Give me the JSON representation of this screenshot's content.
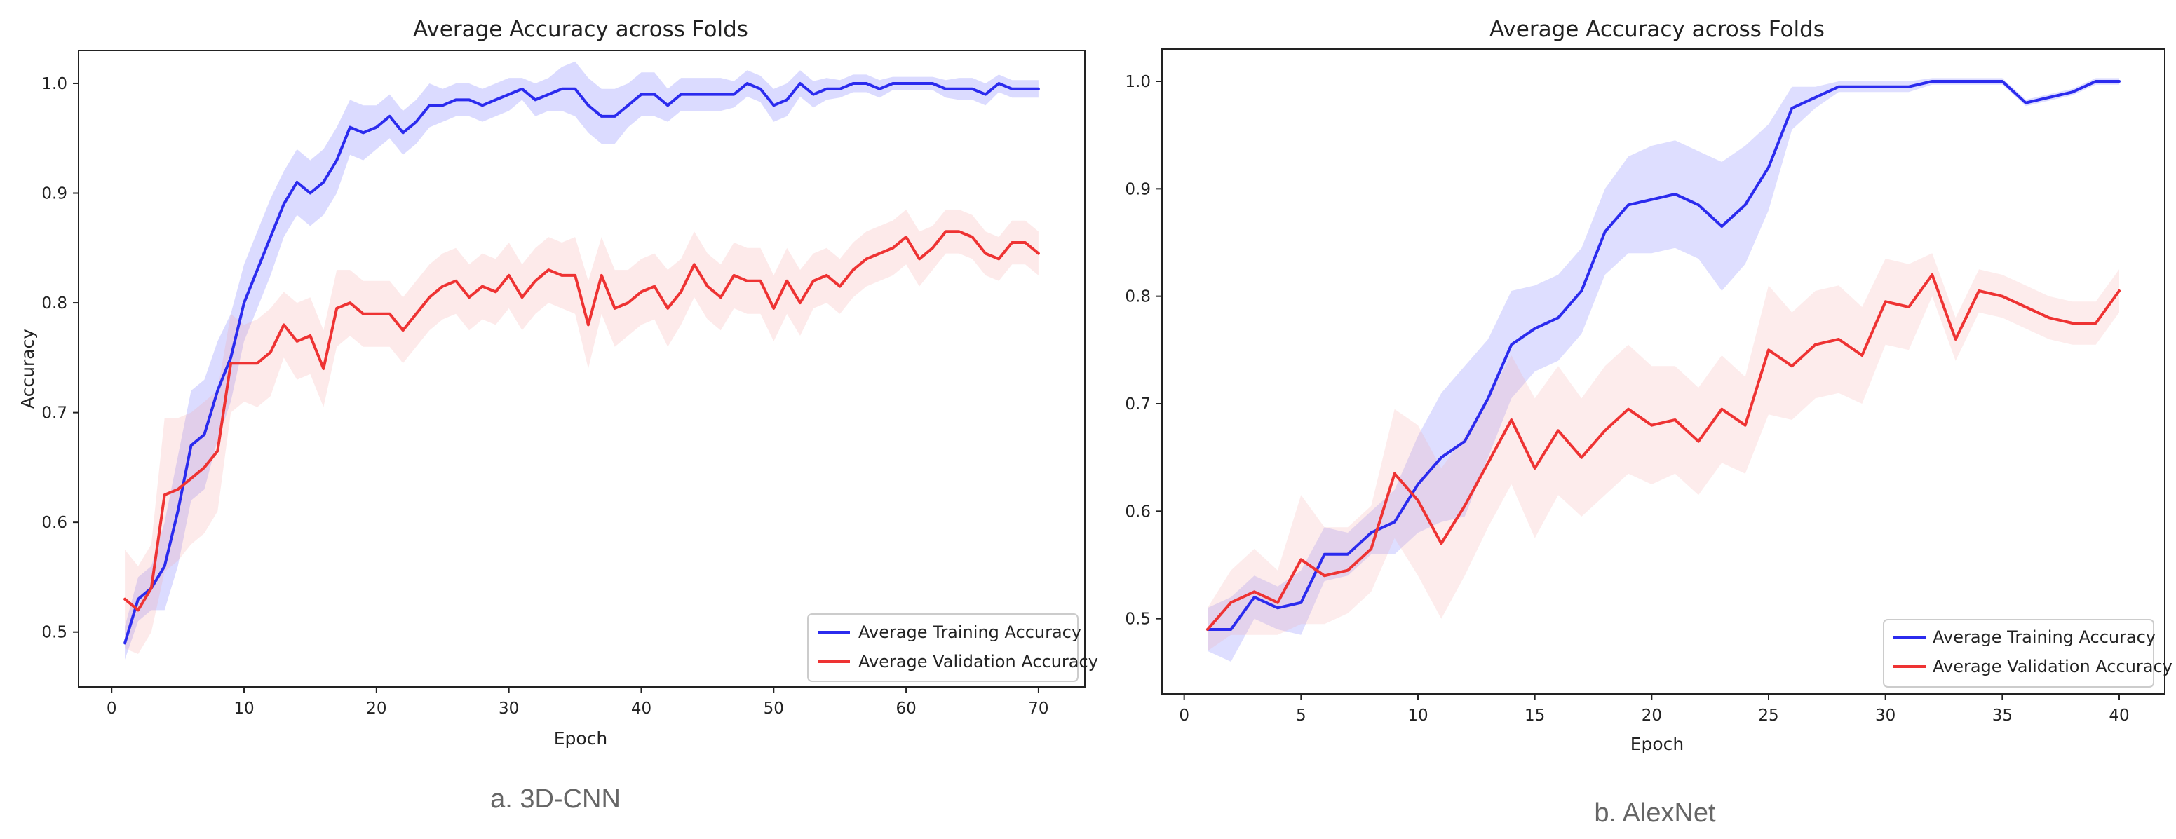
{
  "chart_data": [
    {
      "type": "line",
      "caption": "a. 3D-CNN",
      "title": "Average Accuracy across Folds",
      "xlabel": "Epoch",
      "ylabel": "Accuracy",
      "xlim": [
        -2.5,
        73.5
      ],
      "ylim": [
        0.45,
        1.03
      ],
      "xticks": [
        0,
        10,
        20,
        30,
        40,
        50,
        60,
        70
      ],
      "yticks": [
        0.5,
        0.6,
        0.7,
        0.8,
        0.9,
        1.0
      ],
      "ytick_labels": [
        "0.5",
        "0.6",
        "0.7",
        "0.8",
        "0.9",
        "1.0"
      ],
      "legend_position": "lower-right",
      "x": [
        1,
        2,
        3,
        4,
        5,
        6,
        7,
        8,
        9,
        10,
        11,
        12,
        13,
        14,
        15,
        16,
        17,
        18,
        19,
        20,
        21,
        22,
        23,
        24,
        25,
        26,
        27,
        28,
        29,
        30,
        31,
        32,
        33,
        34,
        35,
        36,
        37,
        38,
        39,
        40,
        41,
        42,
        43,
        44,
        45,
        46,
        47,
        48,
        49,
        50,
        51,
        52,
        53,
        54,
        55,
        56,
        57,
        58,
        59,
        60,
        61,
        62,
        63,
        64,
        65,
        66,
        67,
        68,
        69,
        70
      ],
      "series": [
        {
          "name": "Average Training Accuracy",
          "color": "#2b2bee",
          "band_color": "#5a5aff",
          "band_spread": [
            0.015,
            0.02,
            0.02,
            0.04,
            0.05,
            0.05,
            0.05,
            0.045,
            0.04,
            0.035,
            0.035,
            0.035,
            0.03,
            0.03,
            0.03,
            0.03,
            0.03,
            0.025,
            0.025,
            0.02,
            0.02,
            0.02,
            0.02,
            0.02,
            0.015,
            0.015,
            0.015,
            0.015,
            0.015,
            0.015,
            0.01,
            0.015,
            0.015,
            0.02,
            0.025,
            0.025,
            0.025,
            0.025,
            0.02,
            0.02,
            0.02,
            0.015,
            0.015,
            0.015,
            0.015,
            0.015,
            0.012,
            0.012,
            0.012,
            0.015,
            0.015,
            0.012,
            0.012,
            0.01,
            0.008,
            0.008,
            0.008,
            0.008,
            0.006,
            0.006,
            0.006,
            0.006,
            0.008,
            0.01,
            0.01,
            0.01,
            0.008,
            0.008,
            0.008,
            0.008
          ],
          "values": [
            0.49,
            0.53,
            0.54,
            0.56,
            0.61,
            0.67,
            0.68,
            0.72,
            0.75,
            0.8,
            0.83,
            0.86,
            0.89,
            0.91,
            0.9,
            0.91,
            0.93,
            0.96,
            0.955,
            0.96,
            0.97,
            0.955,
            0.965,
            0.98,
            0.98,
            0.985,
            0.985,
            0.98,
            0.985,
            0.99,
            0.995,
            0.985,
            0.99,
            0.995,
            0.995,
            0.98,
            0.97,
            0.97,
            0.98,
            0.99,
            0.99,
            0.98,
            0.99,
            0.99,
            0.99,
            0.99,
            0.99,
            1.0,
            0.995,
            0.98,
            0.985,
            1.0,
            0.99,
            0.995,
            0.995,
            1.0,
            1.0,
            0.995,
            1.0,
            1.0,
            1.0,
            1.0,
            0.995,
            0.995,
            0.995,
            0.99,
            1.0,
            0.995,
            0.995,
            0.995
          ]
        },
        {
          "name": "Average Validation Accuracy",
          "color": "#ee3333",
          "band_color": "#f4a0a0",
          "band_spread": [
            0.045,
            0.04,
            0.04,
            0.07,
            0.065,
            0.06,
            0.06,
            0.055,
            0.045,
            0.035,
            0.04,
            0.04,
            0.03,
            0.035,
            0.035,
            0.035,
            0.035,
            0.03,
            0.03,
            0.03,
            0.03,
            0.03,
            0.03,
            0.03,
            0.03,
            0.03,
            0.03,
            0.03,
            0.03,
            0.03,
            0.03,
            0.03,
            0.03,
            0.03,
            0.035,
            0.04,
            0.035,
            0.035,
            0.03,
            0.03,
            0.03,
            0.035,
            0.03,
            0.03,
            0.03,
            0.03,
            0.03,
            0.03,
            0.03,
            0.03,
            0.03,
            0.03,
            0.025,
            0.025,
            0.025,
            0.025,
            0.025,
            0.025,
            0.025,
            0.025,
            0.025,
            0.02,
            0.02,
            0.02,
            0.02,
            0.02,
            0.02,
            0.02,
            0.02,
            0.02
          ],
          "values": [
            0.53,
            0.52,
            0.54,
            0.625,
            0.63,
            0.64,
            0.65,
            0.665,
            0.745,
            0.745,
            0.745,
            0.755,
            0.78,
            0.765,
            0.77,
            0.74,
            0.795,
            0.8,
            0.79,
            0.79,
            0.79,
            0.775,
            0.79,
            0.805,
            0.815,
            0.82,
            0.805,
            0.815,
            0.81,
            0.825,
            0.805,
            0.82,
            0.83,
            0.825,
            0.825,
            0.78,
            0.825,
            0.795,
            0.8,
            0.81,
            0.815,
            0.795,
            0.81,
            0.835,
            0.815,
            0.805,
            0.825,
            0.82,
            0.82,
            0.795,
            0.82,
            0.8,
            0.82,
            0.825,
            0.815,
            0.83,
            0.84,
            0.845,
            0.85,
            0.86,
            0.84,
            0.85,
            0.865,
            0.865,
            0.86,
            0.845,
            0.84,
            0.855,
            0.855,
            0.845
          ]
        }
      ]
    },
    {
      "type": "line",
      "caption": "b. AlexNet",
      "title": "Average Accuracy across Folds",
      "xlabel": "Epoch",
      "ylabel": "Accuracy",
      "xlim": [
        -0.95,
        41.95
      ],
      "ylim": [
        0.43,
        1.03
      ],
      "xticks": [
        0,
        5,
        10,
        15,
        20,
        25,
        30,
        35,
        40
      ],
      "yticks": [
        0.5,
        0.6,
        0.7,
        0.8,
        0.9,
        1.0
      ],
      "ytick_labels": [
        "0.5",
        "0.6",
        "0.7",
        "0.8",
        "0.9",
        "1.0"
      ],
      "legend_position": "lower-right",
      "x": [
        1,
        2,
        3,
        4,
        5,
        6,
        7,
        8,
        9,
        10,
        11,
        12,
        13,
        14,
        15,
        16,
        17,
        18,
        19,
        20,
        21,
        22,
        23,
        24,
        25,
        26,
        27,
        28,
        29,
        30,
        31,
        32,
        33,
        34,
        35,
        36,
        37,
        38,
        39,
        40
      ],
      "series": [
        {
          "name": "Average Training Accuracy",
          "color": "#2b2bee",
          "band_color": "#6a6aff",
          "band_spread": [
            0.02,
            0.03,
            0.02,
            0.02,
            0.03,
            0.025,
            0.02,
            0.02,
            0.03,
            0.045,
            0.06,
            0.07,
            0.055,
            0.05,
            0.04,
            0.04,
            0.04,
            0.04,
            0.045,
            0.05,
            0.05,
            0.05,
            0.06,
            0.055,
            0.04,
            0.02,
            0.01,
            0.005,
            0.005,
            0.005,
            0.005,
            0.003,
            0.003,
            0.003,
            0.003,
            0.003,
            0.003,
            0.003,
            0.003,
            0.003
          ],
          "values": [
            0.49,
            0.49,
            0.52,
            0.51,
            0.515,
            0.56,
            0.56,
            0.58,
            0.59,
            0.625,
            0.65,
            0.665,
            0.705,
            0.755,
            0.77,
            0.78,
            0.805,
            0.86,
            0.885,
            0.89,
            0.895,
            0.885,
            0.865,
            0.885,
            0.92,
            0.975,
            0.985,
            0.995,
            0.995,
            0.995,
            0.995,
            1.0,
            1.0,
            1.0,
            1.0,
            0.98,
            0.985,
            0.99,
            1.0,
            1.0
          ]
        },
        {
          "name": "Average Validation Accuracy",
          "color": "#ee3333",
          "band_color": "#f6aaaa",
          "band_spread": [
            0.02,
            0.03,
            0.04,
            0.03,
            0.06,
            0.045,
            0.04,
            0.04,
            0.06,
            0.07,
            0.07,
            0.065,
            0.06,
            0.06,
            0.065,
            0.06,
            0.055,
            0.06,
            0.06,
            0.055,
            0.05,
            0.05,
            0.05,
            0.045,
            0.06,
            0.05,
            0.05,
            0.05,
            0.045,
            0.04,
            0.04,
            0.02,
            0.02,
            0.02,
            0.02,
            0.02,
            0.02,
            0.02,
            0.02,
            0.02
          ],
          "values": [
            0.49,
            0.515,
            0.525,
            0.515,
            0.555,
            0.54,
            0.545,
            0.565,
            0.635,
            0.61,
            0.57,
            0.605,
            0.645,
            0.685,
            0.64,
            0.675,
            0.65,
            0.675,
            0.695,
            0.68,
            0.685,
            0.665,
            0.695,
            0.68,
            0.75,
            0.735,
            0.755,
            0.76,
            0.745,
            0.795,
            0.79,
            0.82,
            0.76,
            0.805,
            0.8,
            0.79,
            0.78,
            0.775,
            0.775,
            0.805
          ]
        }
      ]
    }
  ]
}
